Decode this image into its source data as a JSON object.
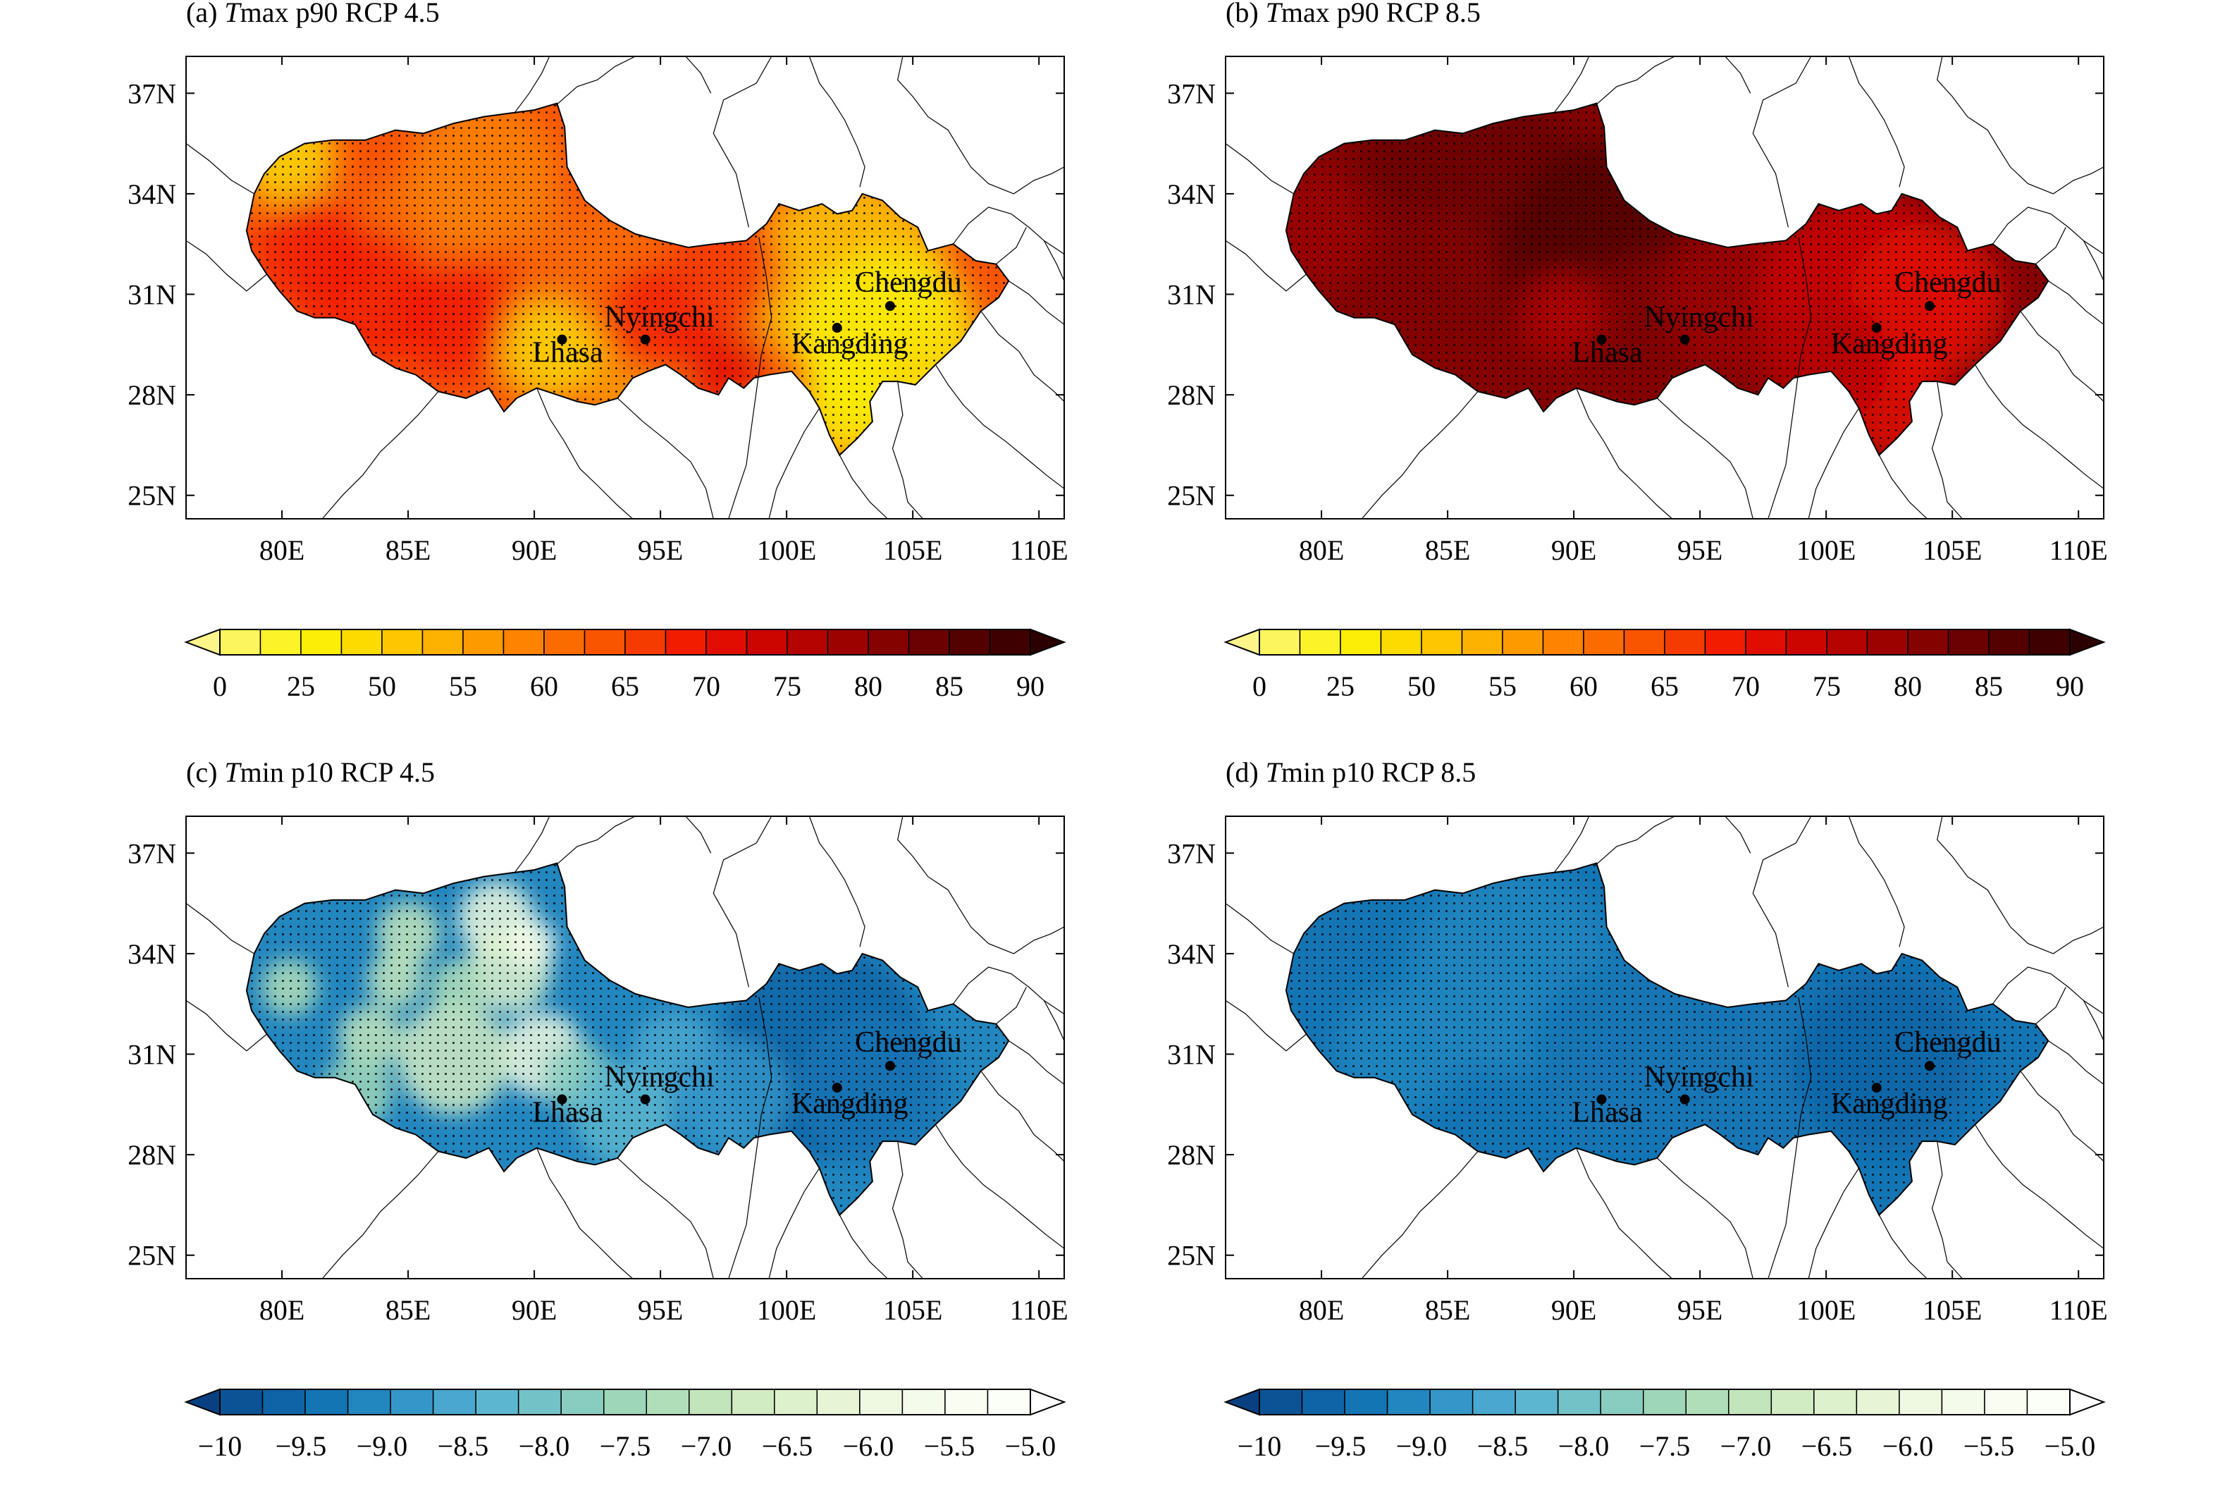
{
  "panels": [
    {
      "id": "a",
      "prefix": "(a) ",
      "var": "T",
      "rest": "max p90 RCP 4.5",
      "palette": "warm",
      "level": "medium"
    },
    {
      "id": "b",
      "prefix": "(b) ",
      "var": "T",
      "rest": "max p90 RCP 8.5",
      "palette": "warm",
      "level": "high"
    },
    {
      "id": "c",
      "prefix": "(c) ",
      "var": "T",
      "rest": "min p10 RCP 4.5",
      "palette": "cool",
      "level": "patchy"
    },
    {
      "id": "d",
      "prefix": "(d) ",
      "var": "T",
      "rest": "min p10 RCP 8.5",
      "palette": "cool",
      "level": "uniform"
    }
  ],
  "axes": {
    "lon_ticks": [
      "80E",
      "85E",
      "90E",
      "95E",
      "100E",
      "105E",
      "110E"
    ],
    "lat_ticks": [
      "37N",
      "34N",
      "31N",
      "28N",
      "25N"
    ]
  },
  "cities": [
    {
      "name": "Lhasa",
      "lon": 91.1,
      "lat": 29.65
    },
    {
      "name": "Nyingchi",
      "lon": 94.4,
      "lat": 29.65
    },
    {
      "name": "Kangding",
      "lon": 102.0,
      "lat": 30.0
    },
    {
      "name": "Chengdu",
      "lon": 104.1,
      "lat": 30.65
    }
  ],
  "colorbars": {
    "warm": {
      "labels": [
        "0",
        "25",
        "50",
        "55",
        "60",
        "65",
        "70",
        "75",
        "80",
        "85",
        "90"
      ],
      "colors": [
        "#fdf58a",
        "#fcf55d",
        "#fcf329",
        "#fcee06",
        "#fdda00",
        "#fdc600",
        "#fdb100",
        "#fd9a00",
        "#fd8300",
        "#fb6c00",
        "#f95400",
        "#f53b00",
        "#f21d00",
        "#e10e00",
        "#cc0500",
        "#b50400",
        "#9c0300",
        "#840200",
        "#6b0100",
        "#520000",
        "#3e0000",
        "#2c0000"
      ]
    },
    "cool": {
      "labels": [
        "−10",
        "−9.5",
        "−9.0",
        "−8.5",
        "−8.0",
        "−7.5",
        "−7.0",
        "−6.5",
        "−6.0",
        "−5.5",
        "−5.0"
      ],
      "colors": [
        "#084081",
        "#0b5394",
        "#0e64a6",
        "#1475b5",
        "#2286bf",
        "#3597c9",
        "#4aa7cf",
        "#5cb6cf",
        "#72c2c8",
        "#88cdbf",
        "#9dd6b8",
        "#b0deb8",
        "#c2e5bc",
        "#d1ebc3",
        "#ddf1cc",
        "#e7f5d6",
        "#eff9e1",
        "#f5fbea",
        "#f9fdf2",
        "#fcfef8",
        "#ffffff"
      ]
    }
  }
}
